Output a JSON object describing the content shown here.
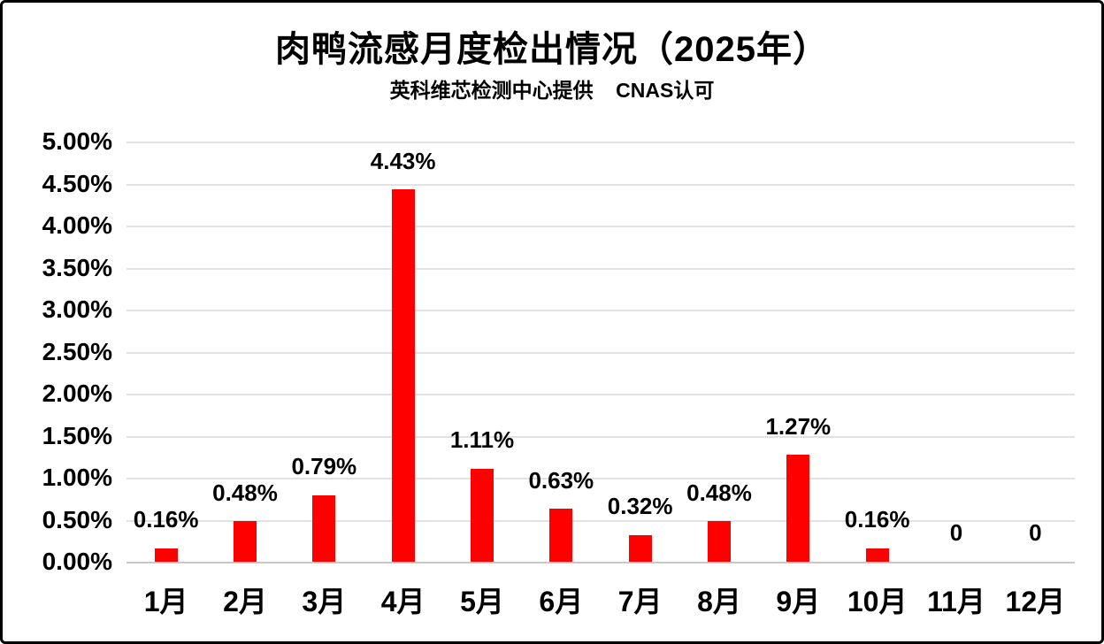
{
  "title": "肉鸭流感月度检出情况（2025年）",
  "subtitle": "英科维芯检测中心提供    CNAS认可",
  "chart_data": {
    "type": "bar",
    "title": "肉鸭流感月度检出情况（2025年）",
    "subtitle": "英科维芯检测中心提供    CNAS认可",
    "categories": [
      "1月",
      "2月",
      "3月",
      "4月",
      "5月",
      "6月",
      "7月",
      "8月",
      "9月",
      "10月",
      "11月",
      "12月"
    ],
    "values": [
      0.16,
      0.48,
      0.79,
      4.43,
      1.11,
      0.63,
      0.32,
      0.48,
      1.27,
      0.16,
      0,
      0
    ],
    "value_labels": [
      "0.16%",
      "0.48%",
      "0.79%",
      "4.43%",
      "1.11%",
      "0.63%",
      "0.32%",
      "0.48%",
      "1.27%",
      "0.16%",
      "0",
      "0"
    ],
    "y_ticks": [
      "5.00%",
      "4.50%",
      "4.00%",
      "3.50%",
      "3.00%",
      "2.50%",
      "2.00%",
      "1.50%",
      "1.00%",
      "0.50%",
      "0.00%"
    ],
    "ylim": [
      0,
      5
    ],
    "xlabel": "",
    "ylabel": "",
    "legend": "none",
    "grid": "horizontal",
    "colors": {
      "bar": "#ff0000",
      "gridline": "#e2e2e2",
      "axis_line": "#c8c8c8",
      "text": "#000000",
      "background": "#ffffff",
      "border": "#000000"
    }
  }
}
